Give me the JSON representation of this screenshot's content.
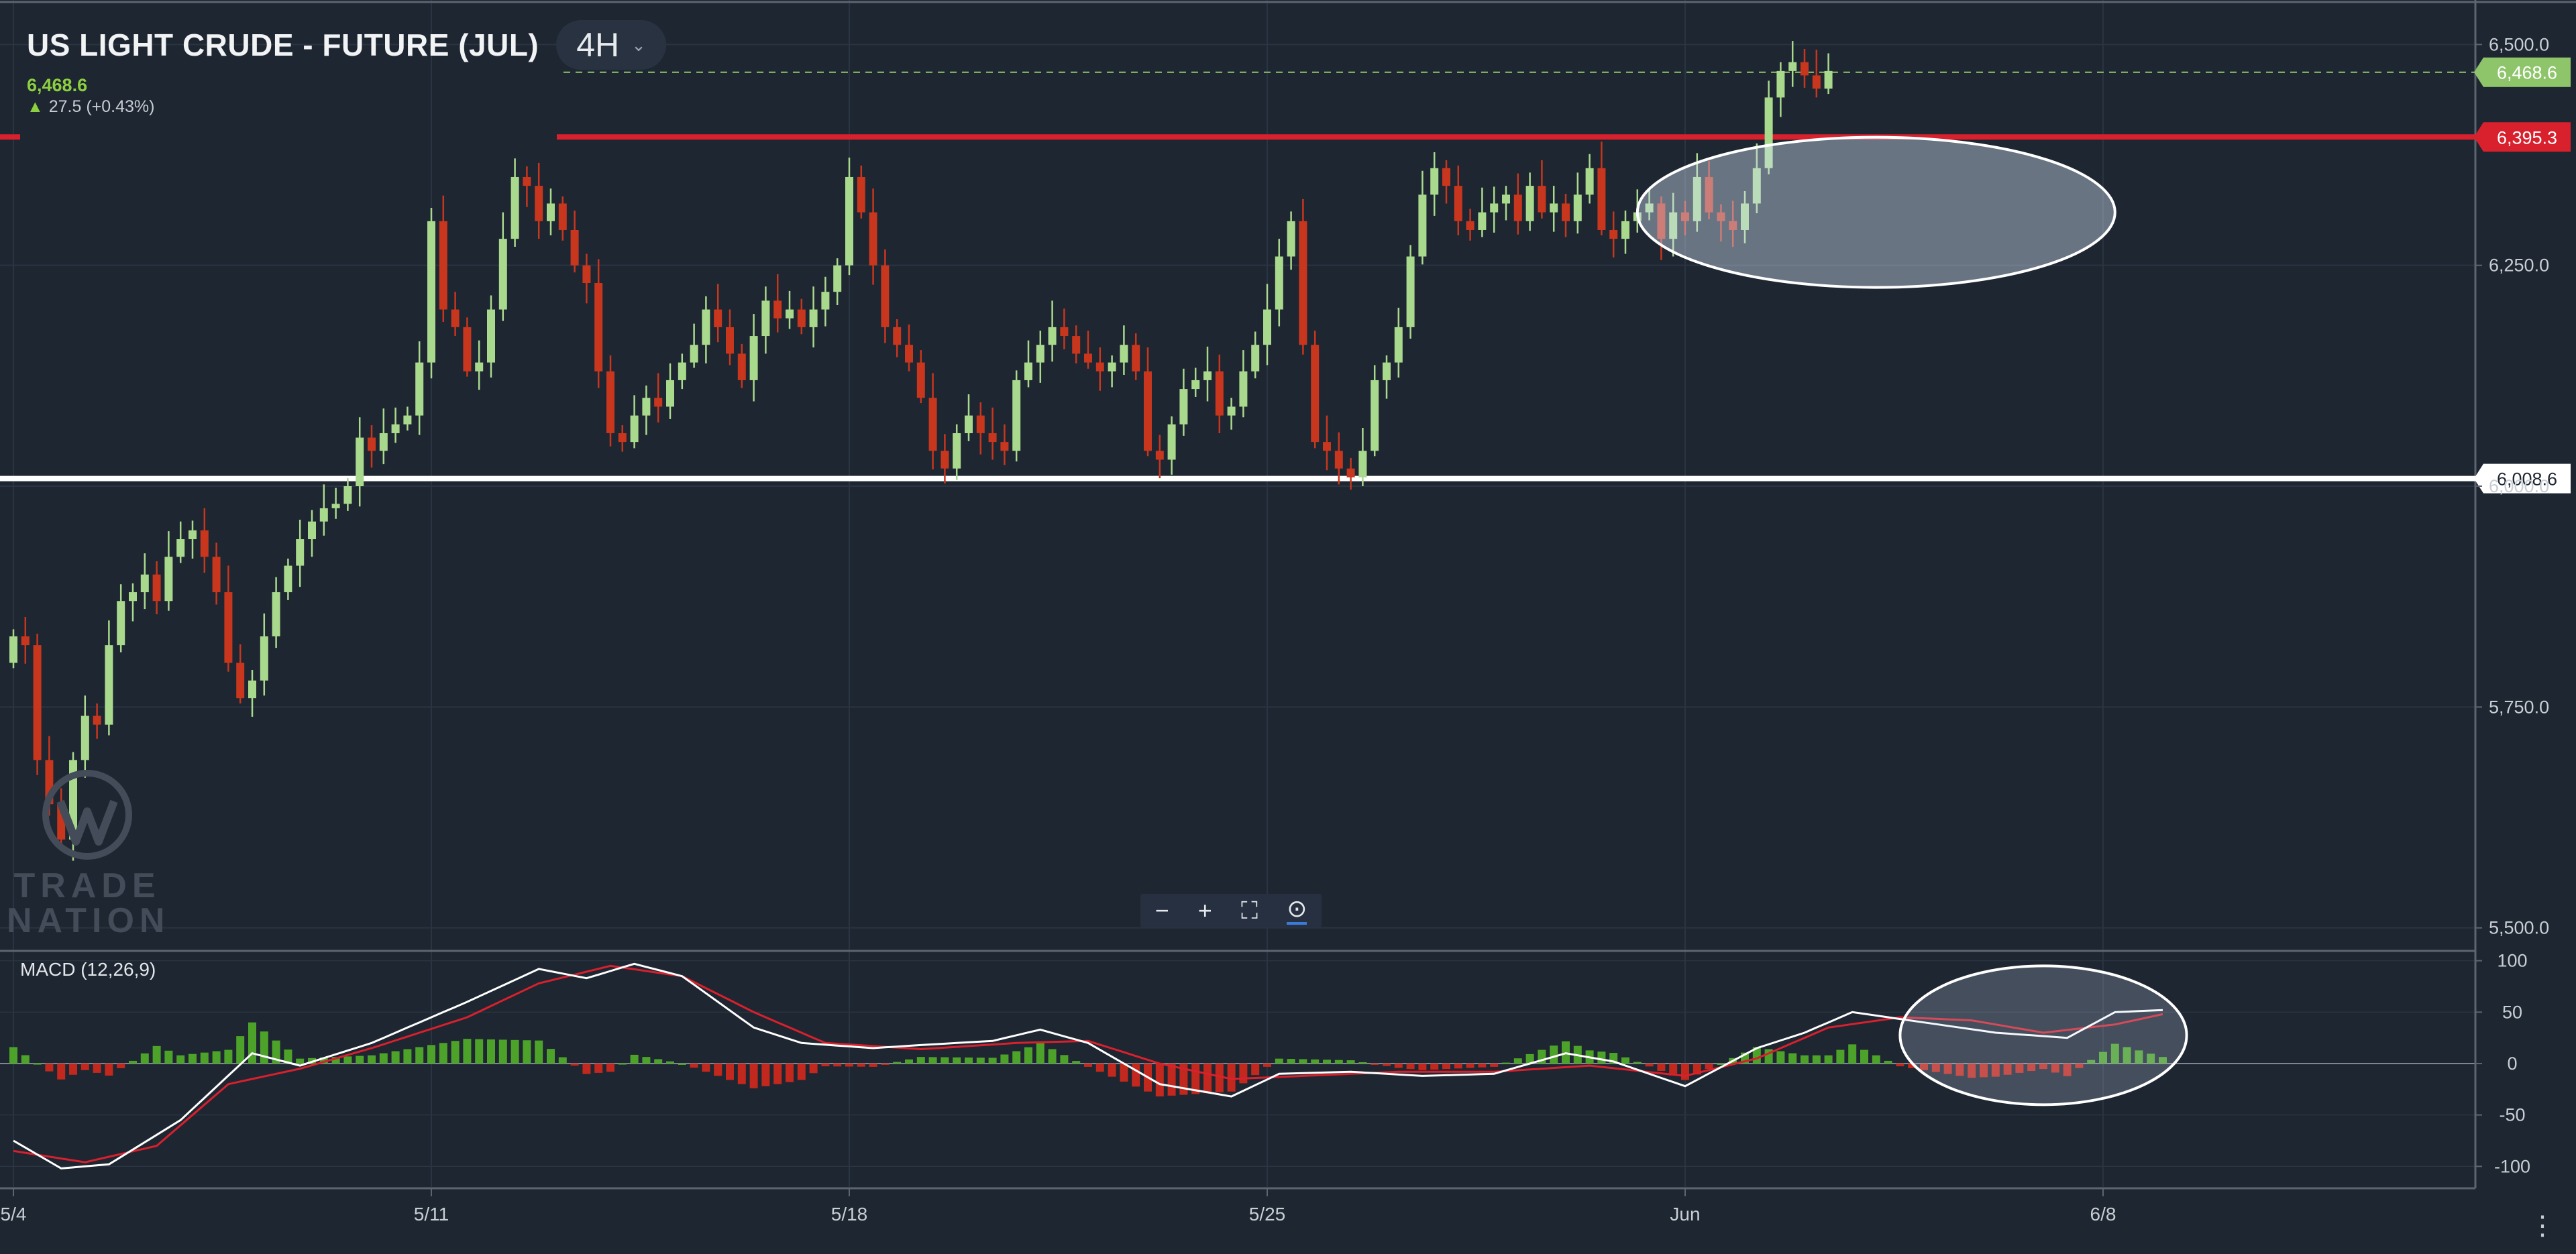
{
  "header": {
    "instrument": "US LIGHT CRUDE - FUTURE (JUL)",
    "timeframe": "4H",
    "last_price": "6,468.6",
    "change": "27.5 (+0.43%)"
  },
  "macd_label": "MACD (12,26,9)",
  "watermark": {
    "line1": "TRADE",
    "line2": "NATION"
  },
  "colors": {
    "background": "#1e2631",
    "up_candle": "#a9d98d",
    "down_candle": "#c8361e",
    "resistance_line": "#d9202d",
    "support_line": "#ffffff",
    "macd_line": "#ffffff",
    "signal_line": "#d9202d",
    "hist_positive": "#4da32a",
    "hist_negative": "#c2281d",
    "last_price_tag": "#8ec56b"
  },
  "chart_data": [
    {
      "type": "candlestick",
      "title": "US LIGHT CRUDE - FUTURE (JUL)",
      "timeframe": "4H",
      "y_ticks": [
        5500,
        5750,
        6000,
        6250,
        6500
      ],
      "y_tick_labels": [
        "5,500.0",
        "5,750.0",
        "6,000.0",
        "6,250.0",
        "6,500.0"
      ],
      "ylim": [
        5480,
        6520
      ],
      "x_ticks": [
        {
          "index": 0,
          "label": "5/4"
        },
        {
          "index": 35,
          "label": "5/11"
        },
        {
          "index": 70,
          "label": "5/18"
        },
        {
          "index": 105,
          "label": "5/25"
        },
        {
          "index": 140,
          "label": "Jun"
        },
        {
          "index": 175,
          "label": "6/8"
        }
      ],
      "horizontal_lines": [
        {
          "value": 6395.3,
          "label": "6,395.3",
          "color": "#d9202d"
        },
        {
          "value": 6008.6,
          "label": "6,008.6",
          "color": "#ffffff"
        },
        {
          "value": 6468.6,
          "label": "6,468.6",
          "color": "#8ec56b",
          "style": "dashed"
        }
      ],
      "annotations": [
        {
          "type": "ellipse",
          "x_range": [
            136,
            176
          ],
          "y_range": [
            6225,
            6395
          ]
        }
      ],
      "candles_note": "OHLC per 4H bar, generated as [open, high, low, close]",
      "closes": [
        5830,
        5820,
        5690,
        5640,
        5600,
        5690,
        5740,
        5730,
        5820,
        5870,
        5880,
        5900,
        5870,
        5920,
        5940,
        5950,
        5920,
        5880,
        5800,
        5760,
        5780,
        5830,
        5880,
        5910,
        5940,
        5960,
        5975,
        5980,
        6000,
        6055,
        6040,
        6060,
        6070,
        6080,
        6140,
        6300,
        6200,
        6180,
        6130,
        6140,
        6200,
        6280,
        6350,
        6340,
        6300,
        6320,
        6290,
        6250,
        6230,
        6130,
        6060,
        6050,
        6080,
        6100,
        6090,
        6120,
        6140,
        6160,
        6200,
        6180,
        6150,
        6120,
        6170,
        6210,
        6190,
        6200,
        6180,
        6200,
        6220,
        6250,
        6350,
        6310,
        6250,
        6180,
        6160,
        6140,
        6100,
        6040,
        6020,
        6060,
        6080,
        6060,
        6050,
        6040,
        6120,
        6140,
        6160,
        6180,
        6170,
        6150,
        6140,
        6130,
        6140,
        6160,
        6130,
        6040,
        6030,
        6070,
        6110,
        6120,
        6130,
        6080,
        6090,
        6130,
        6160,
        6200,
        6260,
        6300,
        6160,
        6050,
        6040,
        6020,
        6010,
        6040,
        6120,
        6140,
        6180,
        6260,
        6330,
        6360,
        6340,
        6300,
        6290,
        6310,
        6320,
        6330,
        6300,
        6340,
        6310,
        6320,
        6300,
        6330,
        6360,
        6290,
        6280,
        6300,
        6310,
        6320,
        6280,
        6310,
        6300,
        6350,
        6310,
        6300,
        6290,
        6320,
        6360,
        6440,
        6470,
        6480,
        6465,
        6450,
        6470
      ]
    },
    {
      "type": "macd",
      "title": "MACD (12,26,9)",
      "y_ticks": [
        -100,
        -50,
        0,
        50,
        100
      ],
      "y_tick_labels": [
        "-100",
        "-50",
        "0",
        "50",
        "100"
      ],
      "ylim": [
        -120,
        105
      ],
      "annotations": [
        {
          "type": "ellipse",
          "x_range": [
            158,
            182
          ],
          "y_range": [
            -40,
            95
          ]
        }
      ],
      "macd_keypoints": [
        [
          0,
          -75
        ],
        [
          4,
          -102
        ],
        [
          8,
          -98
        ],
        [
          14,
          -55
        ],
        [
          20,
          10
        ],
        [
          24,
          -2
        ],
        [
          30,
          20
        ],
        [
          38,
          60
        ],
        [
          44,
          92
        ],
        [
          48,
          83
        ],
        [
          52,
          97
        ],
        [
          56,
          85
        ],
        [
          62,
          35
        ],
        [
          66,
          20
        ],
        [
          72,
          15
        ],
        [
          76,
          18
        ],
        [
          82,
          22
        ],
        [
          86,
          33
        ],
        [
          90,
          20
        ],
        [
          96,
          -20
        ],
        [
          102,
          -32
        ],
        [
          106,
          -10
        ],
        [
          112,
          -8
        ],
        [
          118,
          -12
        ],
        [
          124,
          -10
        ],
        [
          130,
          10
        ],
        [
          134,
          2
        ],
        [
          140,
          -22
        ],
        [
          146,
          15
        ],
        [
          150,
          30
        ],
        [
          154,
          50
        ],
        [
          160,
          40
        ],
        [
          166,
          30
        ],
        [
          172,
          25
        ],
        [
          176,
          50
        ],
        [
          180,
          52
        ]
      ],
      "signal_keypoints": [
        [
          0,
          -85
        ],
        [
          6,
          -96
        ],
        [
          12,
          -80
        ],
        [
          18,
          -20
        ],
        [
          24,
          -5
        ],
        [
          30,
          15
        ],
        [
          38,
          45
        ],
        [
          44,
          78
        ],
        [
          50,
          95
        ],
        [
          56,
          85
        ],
        [
          62,
          50
        ],
        [
          68,
          20
        ],
        [
          76,
          14
        ],
        [
          84,
          20
        ],
        [
          90,
          22
        ],
        [
          96,
          0
        ],
        [
          102,
          -15
        ],
        [
          108,
          -12
        ],
        [
          116,
          -8
        ],
        [
          124,
          -8
        ],
        [
          132,
          -2
        ],
        [
          140,
          -12
        ],
        [
          146,
          5
        ],
        [
          152,
          35
        ],
        [
          158,
          45
        ],
        [
          164,
          42
        ],
        [
          170,
          30
        ],
        [
          176,
          38
        ],
        [
          180,
          48
        ]
      ]
    }
  ]
}
